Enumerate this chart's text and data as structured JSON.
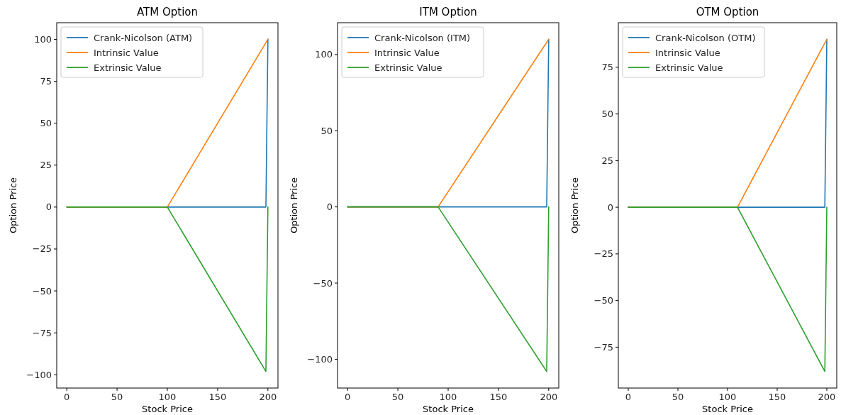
{
  "chart_data": [
    {
      "type": "line",
      "title": "ATM Option",
      "xlabel": "Stock Price",
      "ylabel": "Option Price",
      "x": [
        0,
        100,
        198,
        200
      ],
      "xlim": [
        -10,
        210
      ],
      "xticks": [
        0,
        50,
        100,
        150,
        200
      ],
      "ylim": [
        -107.9,
        109.9
      ],
      "yticks": [
        -100,
        -75,
        -50,
        -25,
        0,
        25,
        50,
        75,
        100
      ],
      "legend": "top left",
      "series": [
        {
          "name": "Crank-Nicolson (ATM)",
          "color": "#1f77b4",
          "values": [
            0,
            0,
            0,
            100
          ]
        },
        {
          "name": "Intrinsic Value",
          "color": "#ff7f0e",
          "values": [
            0,
            0,
            98,
            100
          ]
        },
        {
          "name": "Extrinsic Value",
          "color": "#2ca02c",
          "values": [
            0,
            0,
            -98,
            0
          ]
        }
      ]
    },
    {
      "type": "line",
      "title": "ITM Option",
      "xlabel": "Stock Price",
      "ylabel": "Option Price",
      "x": [
        0,
        90,
        198,
        200
      ],
      "xlim": [
        -10,
        210
      ],
      "xticks": [
        0,
        50,
        100,
        150,
        200
      ],
      "ylim": [
        -118.9,
        120.9
      ],
      "yticks": [
        -100,
        -50,
        0,
        50,
        100
      ],
      "legend": "top left",
      "series": [
        {
          "name": "Crank-Nicolson (ITM)",
          "color": "#1f77b4",
          "values": [
            0,
            0,
            0,
            110
          ]
        },
        {
          "name": "Intrinsic Value",
          "color": "#ff7f0e",
          "values": [
            0,
            0,
            108,
            110
          ]
        },
        {
          "name": "Extrinsic Value",
          "color": "#2ca02c",
          "values": [
            0,
            0,
            -108,
            0
          ]
        }
      ]
    },
    {
      "type": "line",
      "title": "OTM Option",
      "xlabel": "Stock Price",
      "ylabel": "Option Price",
      "x": [
        0,
        110,
        198,
        200
      ],
      "xlim": [
        -10,
        210
      ],
      "xticks": [
        0,
        50,
        100,
        150,
        200
      ],
      "ylim": [
        -96.9,
        98.9
      ],
      "yticks": [
        -75,
        -50,
        -25,
        0,
        25,
        50,
        75
      ],
      "legend": "top left",
      "series": [
        {
          "name": "Crank-Nicolson (OTM)",
          "color": "#1f77b4",
          "values": [
            0,
            0,
            0,
            90
          ]
        },
        {
          "name": "Intrinsic Value",
          "color": "#ff7f0e",
          "values": [
            0,
            0,
            88,
            90
          ]
        },
        {
          "name": "Extrinsic Value",
          "color": "#2ca02c",
          "values": [
            0,
            0,
            -88,
            0
          ]
        }
      ]
    }
  ]
}
